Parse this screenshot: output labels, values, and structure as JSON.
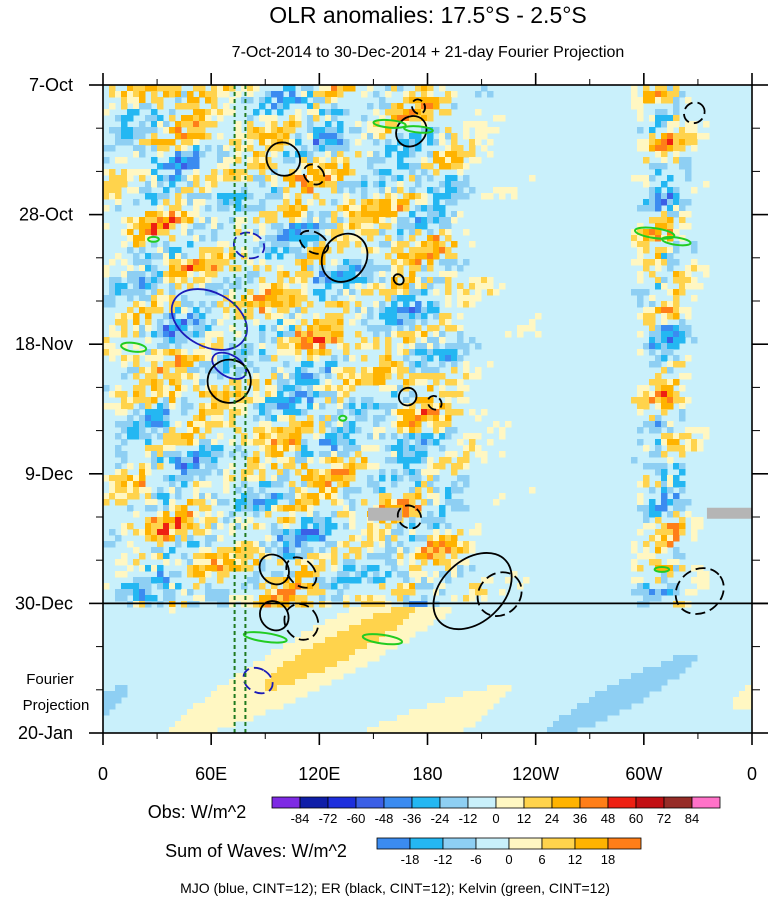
{
  "chart_data": {
    "type": "heatmap",
    "title": "OLR anomalies: 17.5°S - 2.5°S",
    "subtitle": "7-Oct-2014 to 30-Dec-2014 + 21-day Fourier Projection",
    "x_tick_labels": [
      "0",
      "60E",
      "120E",
      "180",
      "120W",
      "60W",
      "0"
    ],
    "x_tick_lon": [
      0,
      60,
      120,
      180,
      240,
      300,
      360
    ],
    "y_tick_labels": [
      "7-Oct",
      "28-Oct",
      "18-Nov",
      "9-Dec",
      "30-Dec",
      "20-Jan"
    ],
    "y_tick_day": [
      0,
      21,
      42,
      63,
      84,
      105
    ],
    "projection_label": [
      "Fourier",
      "Projection"
    ],
    "observation_end": "30-Dec",
    "green_reference_lines_lon": [
      73,
      79
    ],
    "obs_colorbar": {
      "label": "Obs: W/m^2",
      "levels": [
        "-84",
        "-72",
        "-60",
        "-48",
        "-36",
        "-24",
        "-12",
        "0",
        "12",
        "24",
        "36",
        "48",
        "60",
        "72",
        "84"
      ],
      "colors": [
        "#7e2ae4",
        "#0f1ea8",
        "#1d2edc",
        "#3b5fe6",
        "#3b8bf0",
        "#24b7f2",
        "#8ecff3",
        "#c9f0fb",
        "#fff7c2",
        "#ffd34c",
        "#ffb300",
        "#ff7e18",
        "#ee2012",
        "#c20f13",
        "#962c27",
        "#ff72c8"
      ]
    },
    "waves_colorbar": {
      "label": "Sum of Waves: W/m^2",
      "levels": [
        "-18",
        "-12",
        "-6",
        "0",
        "6",
        "12",
        "18"
      ],
      "colors": [
        "#3b8bf0",
        "#24b7f2",
        "#8ecff3",
        "#c9f0fb",
        "#fff7c2",
        "#ffd34c",
        "#ffb300",
        "#ff7e18"
      ]
    },
    "footnote": "MJO (blue, CINT=12); ER (black, CINT=12); Kelvin (green, CINT=12)",
    "series": [
      {
        "name": "MJO",
        "color": "#1b1bb8",
        "contours": [
          {
            "lon": 59,
            "day": 38,
            "rx": 15,
            "ry": 6.5,
            "angle": -62,
            "dash": false
          },
          {
            "lon": 70,
            "day": 45.5,
            "rx": 6,
            "ry": 3,
            "angle": -60,
            "dash": false
          },
          {
            "lon": 81,
            "day": 26,
            "rx": 7,
            "ry": 2.5,
            "angle": -72,
            "dash": true
          },
          {
            "lon": 86,
            "day": 96.5,
            "rx": 6.5,
            "ry": 2.5,
            "angle": -60,
            "dash": true
          }
        ]
      },
      {
        "name": "ER",
        "color": "#000000",
        "contours": [
          {
            "lon": 100,
            "day": 12,
            "rx": 9,
            "ry": 2.8,
            "angle": -48,
            "dash": false
          },
          {
            "lon": 117,
            "day": 14.5,
            "rx": 5,
            "ry": 1.8,
            "angle": -48,
            "dash": true
          },
          {
            "lon": 117,
            "day": 25.5,
            "rx": 5.5,
            "ry": 2.5,
            "angle": -60,
            "dash": true
          },
          {
            "lon": 134,
            "day": 28,
            "rx": 14,
            "ry": 3.5,
            "angle": -55,
            "dash": false
          },
          {
            "lon": 70,
            "day": 48,
            "rx": 12,
            "ry": 3.5,
            "angle": -40,
            "dash": false
          },
          {
            "lon": 95,
            "day": 78.5,
            "rx": 7.5,
            "ry": 2.6,
            "angle": -42,
            "dash": false
          },
          {
            "lon": 110,
            "day": 79,
            "rx": 7,
            "ry": 2.8,
            "angle": -44,
            "dash": true
          },
          {
            "lon": 95,
            "day": 86,
            "rx": 7.5,
            "ry": 2.5,
            "angle": -40,
            "dash": false
          },
          {
            "lon": 110,
            "day": 87,
            "rx": 9,
            "ry": 3,
            "angle": -32,
            "dash": true
          },
          {
            "lon": 171,
            "day": 7.5,
            "rx": 9,
            "ry": 2.3,
            "angle": -46,
            "dash": false
          },
          {
            "lon": 175,
            "day": 3.5,
            "rx": 3.5,
            "ry": 1.2,
            "angle": -30,
            "dash": true
          },
          {
            "lon": 164,
            "day": 31.5,
            "rx": 2.6,
            "ry": 0.9,
            "angle": -40,
            "dash": false
          },
          {
            "lon": 169,
            "day": 50.5,
            "rx": 5,
            "ry": 1.4,
            "angle": -45,
            "dash": false
          },
          {
            "lon": 184,
            "day": 51.5,
            "rx": 3.5,
            "ry": 1.2,
            "angle": -45,
            "dash": true
          },
          {
            "lon": 170,
            "day": 70,
            "rx": 6,
            "ry": 2,
            "angle": -48,
            "dash": true
          },
          {
            "lon": 205,
            "day": 82,
            "rx": 25,
            "ry": 5,
            "angle": -43,
            "dash": false
          },
          {
            "lon": 220,
            "day": 82.5,
            "rx": 13,
            "ry": 3.3,
            "angle": -44,
            "dash": true
          },
          {
            "lon": 331,
            "day": 82,
            "rx": 14,
            "ry": 3.5,
            "angle": -36,
            "dash": true
          },
          {
            "lon": 328,
            "day": 4.5,
            "rx": 6,
            "ry": 1.6,
            "angle": -48,
            "dash": true
          }
        ]
      },
      {
        "name": "Kelvin",
        "color": "#22cc22",
        "contours": [
          {
            "lon": 159,
            "day": 6.3,
            "rx": 9,
            "ry": 0.6,
            "angle": 5,
            "dash": false
          },
          {
            "lon": 175,
            "day": 7.2,
            "rx": 8,
            "ry": 0.5,
            "angle": 5,
            "dash": false
          },
          {
            "lon": 306,
            "day": 24,
            "rx": 11,
            "ry": 0.8,
            "angle": 8,
            "dash": false
          },
          {
            "lon": 318,
            "day": 25.3,
            "rx": 8,
            "ry": 0.6,
            "angle": 8,
            "dash": false
          },
          {
            "lon": 17,
            "day": 42.5,
            "rx": 7,
            "ry": 0.7,
            "angle": 8,
            "dash": false
          },
          {
            "lon": 90,
            "day": 89.5,
            "rx": 12,
            "ry": 0.7,
            "angle": 8,
            "dash": false
          },
          {
            "lon": 155,
            "day": 89.8,
            "rx": 11,
            "ry": 0.7,
            "angle": 8,
            "dash": false
          },
          {
            "lon": 28,
            "day": 25,
            "rx": 3,
            "ry": 0.4,
            "angle": 0,
            "dash": false
          },
          {
            "lon": 133,
            "day": 54,
            "rx": 2,
            "ry": 0.4,
            "angle": 0,
            "dash": false
          },
          {
            "lon": 310,
            "day": 78.5,
            "rx": 4,
            "ry": 0.4,
            "angle": 0,
            "dash": false
          }
        ]
      }
    ]
  }
}
